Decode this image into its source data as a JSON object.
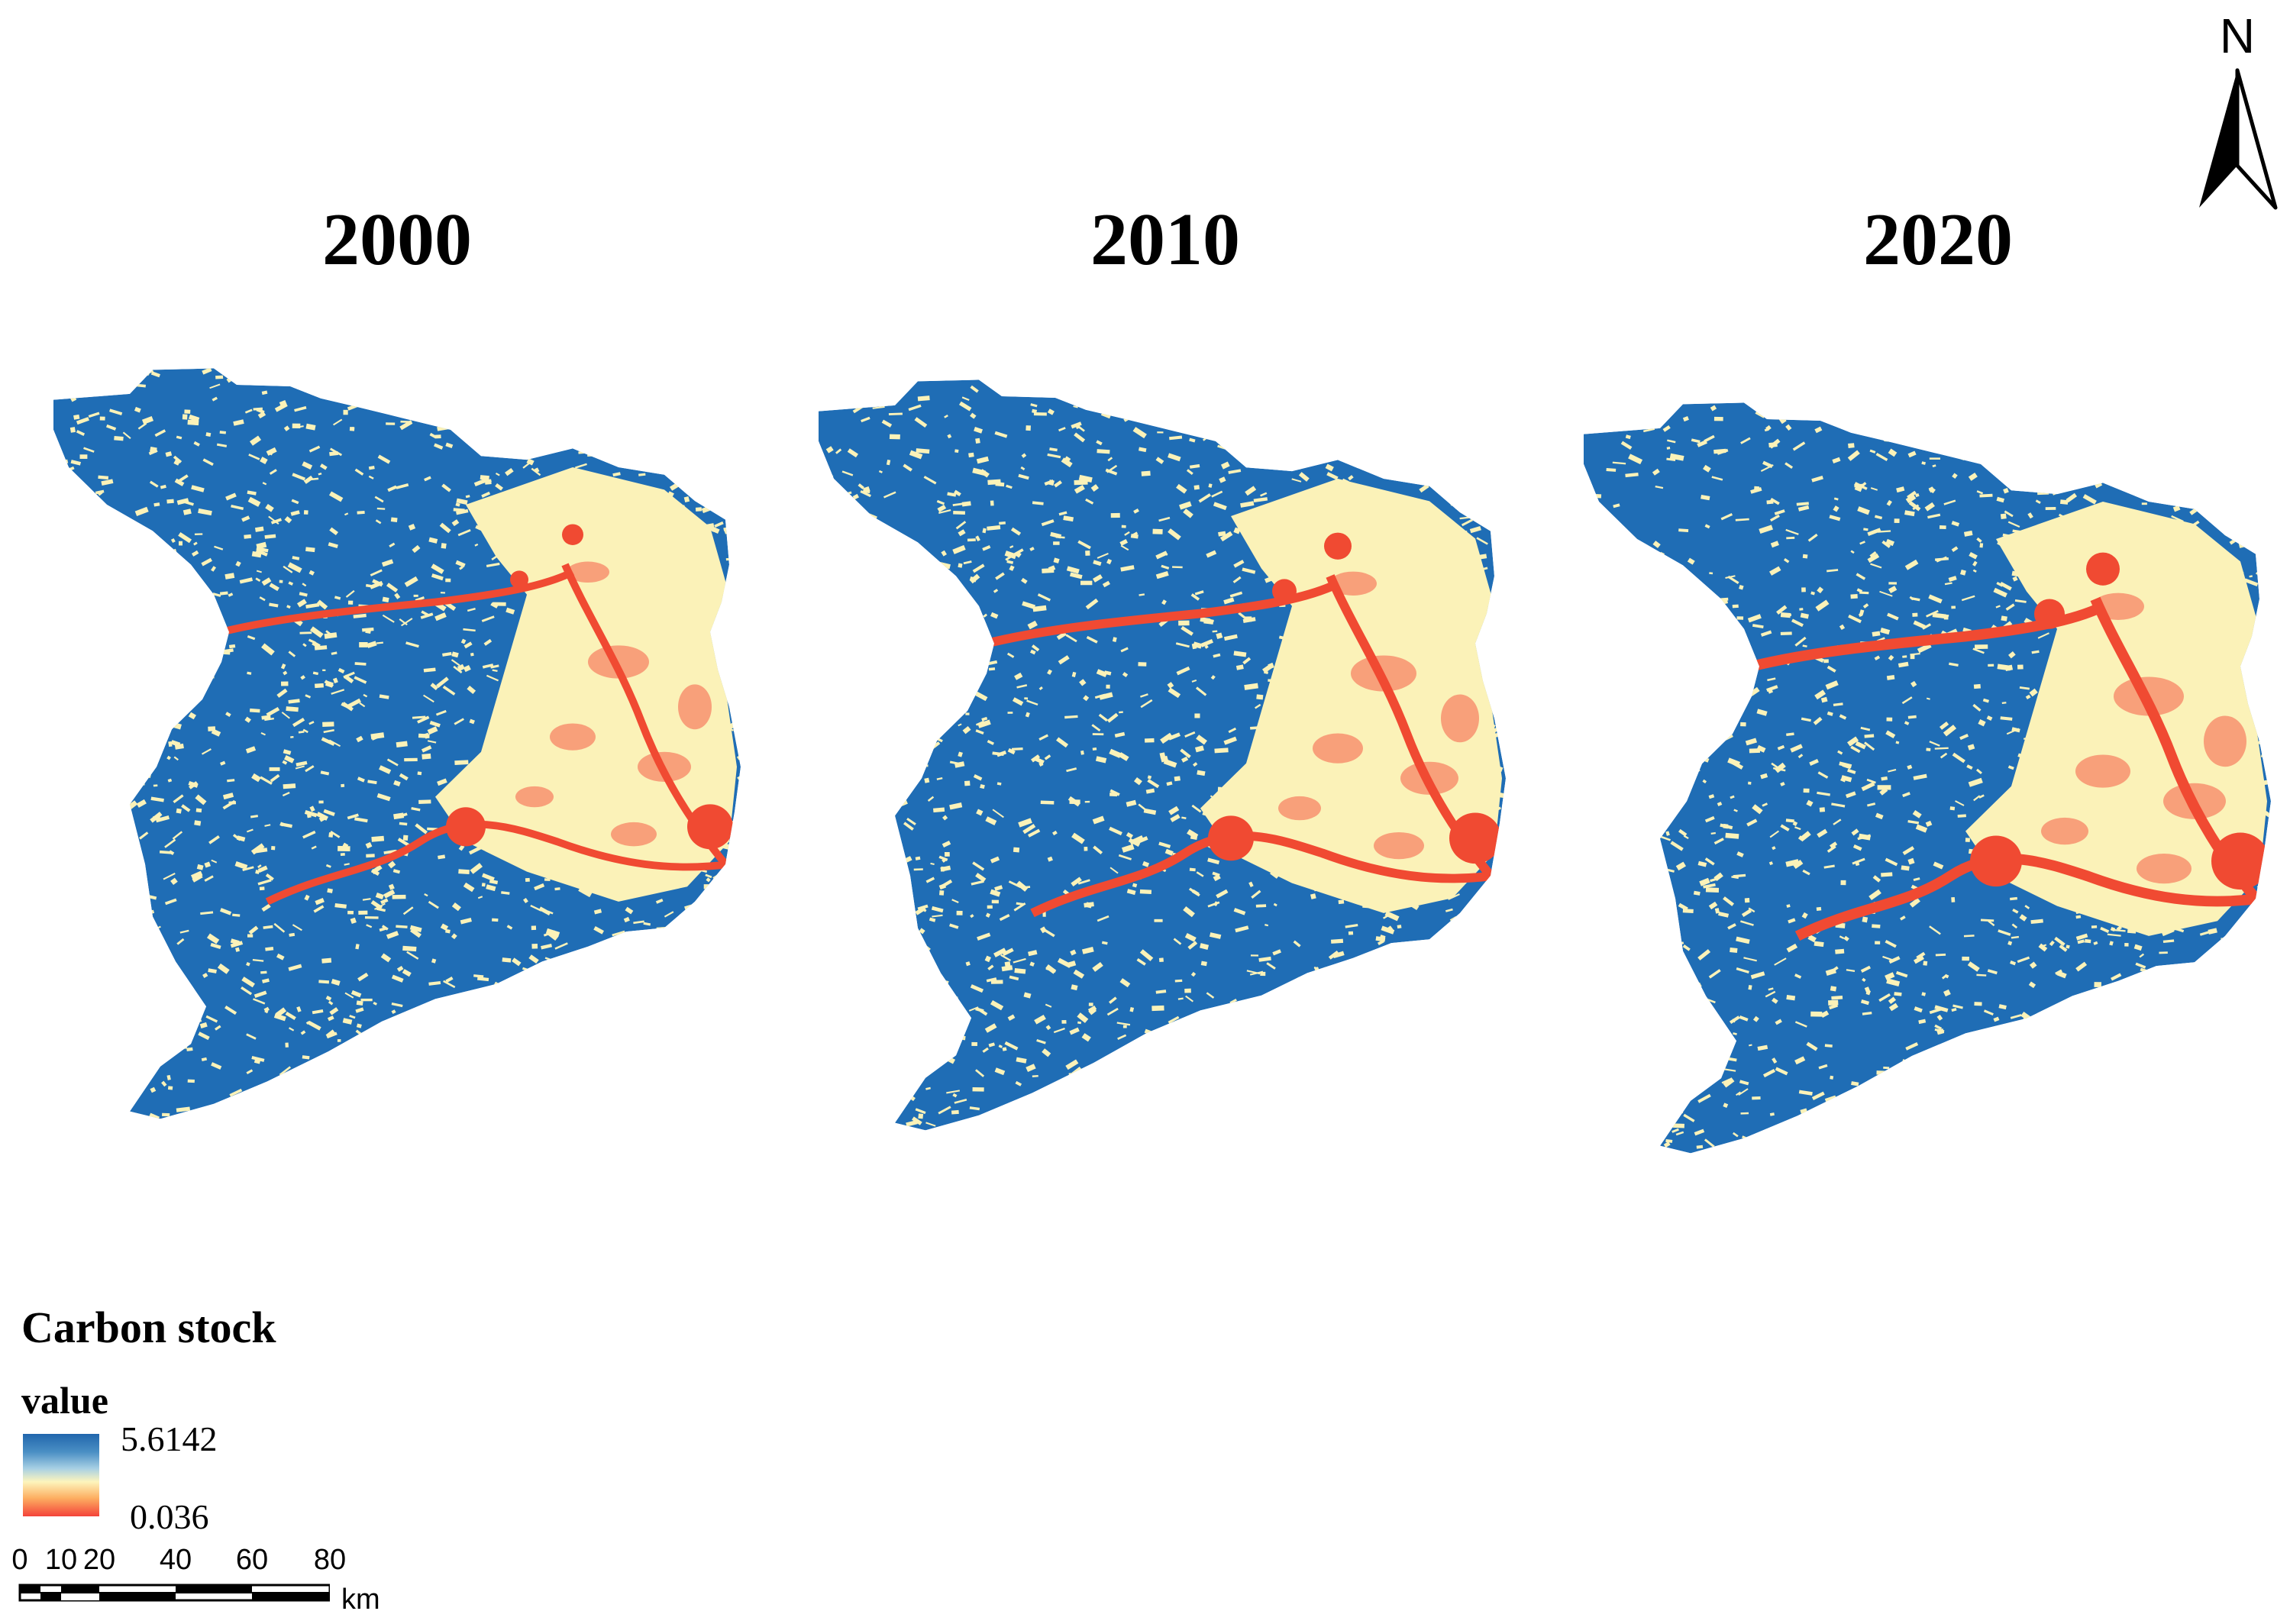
{
  "panels": [
    {
      "year": "2000"
    },
    {
      "year": "2010"
    },
    {
      "year": "2020"
    }
  ],
  "north": {
    "label": "N"
  },
  "legend": {
    "title": "Carbon stock",
    "subtitle": "value",
    "max": "5.6142",
    "min": "0.036",
    "colors": [
      "#2166ac",
      "#fdf5bd",
      "#f4433a"
    ]
  },
  "scale_bar": {
    "ticks": [
      "0",
      "10",
      "20",
      "40",
      "60",
      "80"
    ],
    "unit": "km"
  },
  "colors": {
    "high_stock": "#1f6db5",
    "mid_stock": "#fbf2b8",
    "low_stock_light": "#f8a07a",
    "low_stock": "#f04a32"
  }
}
